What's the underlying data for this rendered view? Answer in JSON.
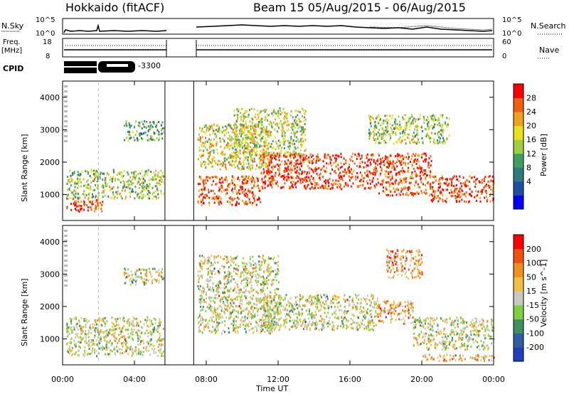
{
  "header": {
    "station": "Hokkaido (fitACF)",
    "beam_text": "Beam 15 05/Aug/2015 - 06/Aug/2015"
  },
  "top_panels": {
    "nsky_label": "N.Sky",
    "nsky_ticks": [
      "10^5",
      "10^0"
    ],
    "nsearch_label": "N.Search",
    "nsearch_ticks": [
      "10^5",
      "10^0"
    ],
    "freq_label_1": "Freq.",
    "freq_label_2": "[MHz]",
    "freq_ticks": [
      "18",
      "8"
    ],
    "nave_label": "Nave",
    "nave_ticks": [
      "60",
      "0"
    ],
    "cpid_label": "CPID",
    "cpid_value": "-3300"
  },
  "chart_data": [
    {
      "type": "heatmap",
      "name": "power",
      "ylabel": "Slant Range [km]",
      "ylim": [
        200,
        4500
      ],
      "y_ticks": [
        "4000",
        "3000",
        "2000",
        "1000"
      ],
      "x_ticks": [
        "00:00",
        "04:00",
        "08:00",
        "12:00",
        "16:00",
        "20:00",
        "00:00"
      ],
      "xlim_hours": [
        0,
        24
      ],
      "no_data_gap_hours": [
        5.7,
        7.3
      ],
      "colorbar": {
        "label": "Power [dB]",
        "ticks": [
          "28",
          "24",
          "20",
          "16",
          "12",
          "8",
          "4"
        ],
        "colors": [
          "#0000ff",
          "#1f4fa0",
          "#2f7a7a",
          "#3f9f5f",
          "#9fcf3f",
          "#e8e020",
          "#f0a020",
          "#f06010",
          "#ff0000"
        ]
      },
      "echo_bands": [
        {
          "t0": 0.2,
          "t1": 2.2,
          "r0": 500,
          "r1": 950,
          "level": 0.85
        },
        {
          "t0": 0.2,
          "t1": 5.6,
          "r0": 900,
          "r1": 1800,
          "level": 0.5
        },
        {
          "t0": 3.4,
          "t1": 5.6,
          "r0": 2700,
          "r1": 3300,
          "level": 0.4
        },
        {
          "t0": 7.5,
          "t1": 11.0,
          "r0": 700,
          "r1": 1600,
          "level": 0.85
        },
        {
          "t0": 7.5,
          "t1": 11.5,
          "r0": 1800,
          "r1": 3200,
          "level": 0.6
        },
        {
          "t0": 9.5,
          "t1": 13.5,
          "r0": 2200,
          "r1": 3700,
          "level": 0.55
        },
        {
          "t0": 11.0,
          "t1": 17.5,
          "r0": 1200,
          "r1": 2300,
          "level": 0.9
        },
        {
          "t0": 17.5,
          "t1": 20.5,
          "r0": 1000,
          "r1": 2300,
          "level": 0.85
        },
        {
          "t0": 20.5,
          "t1": 24.0,
          "r0": 800,
          "r1": 1600,
          "level": 0.9
        },
        {
          "t0": 17.0,
          "t1": 21.5,
          "r0": 2600,
          "r1": 3500,
          "level": 0.5
        }
      ]
    },
    {
      "type": "heatmap",
      "name": "velocity",
      "ylabel": "Slant Range [km]",
      "ylim": [
        200,
        4500
      ],
      "y_ticks": [
        "4000",
        "3000",
        "2000",
        "1000"
      ],
      "x_ticks": [
        "00:00",
        "04:00",
        "08:00",
        "12:00",
        "16:00",
        "20:00",
        "00:00"
      ],
      "xlabel": "Time UT",
      "xlim_hours": [
        0,
        24
      ],
      "no_data_gap_hours": [
        5.7,
        7.3
      ],
      "colorbar": {
        "label": "Velocity [m s^-1]",
        "ticks": [
          "200",
          "100",
          "50",
          "15",
          "-15",
          "-50",
          "-100",
          "-200"
        ],
        "colors": [
          "#1f3fbf",
          "#2f5f9f",
          "#3f8f5f",
          "#7fcf3f",
          "#c8c8c0",
          "#f0c040",
          "#f09020",
          "#f05010",
          "#ff0000"
        ]
      },
      "echo_bands": [
        {
          "t0": 0.2,
          "t1": 5.6,
          "r0": 500,
          "r1": 1700,
          "level": 0.5
        },
        {
          "t0": 3.4,
          "t1": 5.6,
          "r0": 2700,
          "r1": 3200,
          "level": 0.5
        },
        {
          "t0": 7.5,
          "t1": 12.0,
          "r0": 1200,
          "r1": 3600,
          "level": 0.5
        },
        {
          "t0": 11.0,
          "t1": 17.5,
          "r0": 1300,
          "r1": 2400,
          "level": 0.5
        },
        {
          "t0": 17.5,
          "t1": 19.5,
          "r0": 1500,
          "r1": 2200,
          "level": 0.7
        },
        {
          "t0": 18.0,
          "t1": 20.0,
          "r0": 2900,
          "r1": 3800,
          "level": 0.7
        },
        {
          "t0": 19.5,
          "t1": 24.0,
          "r0": 700,
          "r1": 1700,
          "level": 0.5
        },
        {
          "t0": 20.0,
          "t1": 24.0,
          "r0": 350,
          "r1": 550,
          "level": 0.62
        }
      ]
    }
  ]
}
